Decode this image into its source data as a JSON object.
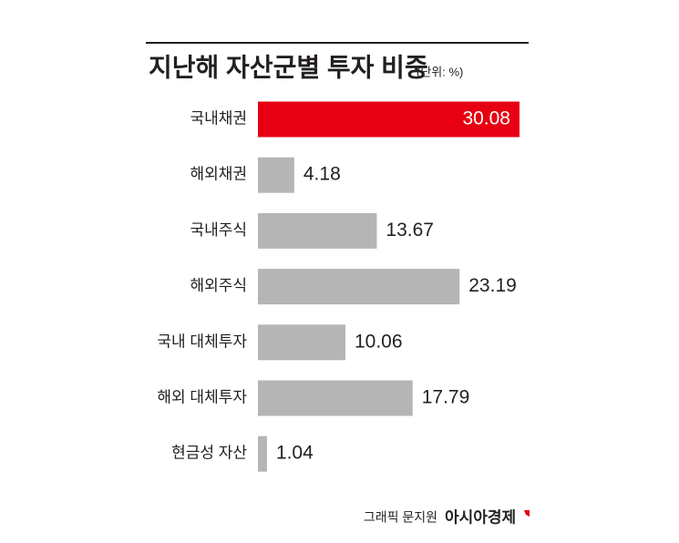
{
  "chart_data": {
    "type": "hbar",
    "title": "지난해 자산군별 투자 비중",
    "subtitle": "(단위: %)",
    "categories": [
      "국내채권",
      "해외채권",
      "국내주식",
      "해외주식",
      "국내 대체투자",
      "해외 대체투자",
      "현금성 자산"
    ],
    "values": [
      30.08,
      4.18,
      13.67,
      23.19,
      10.06,
      17.79,
      1.04
    ],
    "colors": [
      "#e60012",
      "#b5b5b5",
      "#b5b5b5",
      "#b5b5b5",
      "#b5b5b5",
      "#b5b5b5",
      "#b5b5b5"
    ],
    "credit": "그래픽 문지원",
    "source": "아시아경제"
  }
}
